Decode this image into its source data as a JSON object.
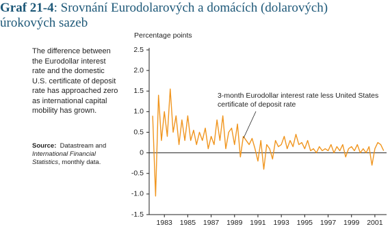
{
  "chart_data": {
    "type": "line",
    "title_number": "Graf 21-4",
    "title": ": Srovnání Eurodolarových a domácích (dolarových) úrokových sazeb",
    "side_note": "The difference between the Eurodollar interest rate and the domestic U.S. certificate of deposit rate has approached zero as international capital mobility has grown.",
    "source": {
      "label": "Source:",
      "text": "Datastream and",
      "italic": "International Financial Statistics",
      "tail": ", monthly data."
    },
    "ylabel": "Percentage points",
    "annotation": "3-month Eurodollar interest rate less United States certificate of deposit rate",
    "xlim": [
      1981.7,
      2002.0
    ],
    "xticks": [
      1983,
      1985,
      1987,
      1989,
      1991,
      1993,
      1995,
      1997,
      1999,
      2001
    ],
    "ylim": [
      -1.5,
      2.5
    ],
    "yticks": [
      {
        "value": 2.5,
        "label": "2.5"
      },
      {
        "value": 2,
        "label": "2.0"
      },
      {
        "value": 1.5,
        "label": "1.5"
      },
      {
        "value": 1,
        "label": "1.0"
      },
      {
        "value": 0.5,
        "label": "0.5"
      },
      0,
      {
        "value": -0.5,
        "label": "-0.5"
      },
      {
        "value": -1,
        "label": "-1.0"
      },
      {
        "value": -1.5,
        "label": "-1.5"
      }
    ],
    "zero_line": true,
    "series": [
      {
        "name": "3-month Eurodollar interest rate less United States certificate of deposit rate",
        "color": "#f0951e",
        "x": [
          1982,
          1982.25,
          1982.5,
          1982.75,
          1983,
          1983.25,
          1983.5,
          1983.75,
          1984,
          1984.25,
          1984.5,
          1984.75,
          1985,
          1985.25,
          1985.5,
          1985.75,
          1986,
          1986.25,
          1986.5,
          1986.75,
          1987,
          1987.25,
          1987.5,
          1987.75,
          1988,
          1988.25,
          1988.5,
          1988.75,
          1989,
          1989.25,
          1989.5,
          1989.75,
          1990,
          1990.25,
          1990.5,
          1990.75,
          1991,
          1991.25,
          1991.5,
          1991.75,
          1992,
          1992.25,
          1992.5,
          1992.75,
          1993,
          1993.25,
          1993.5,
          1993.75,
          1994,
          1994.25,
          1994.5,
          1994.75,
          1995,
          1995.25,
          1995.5,
          1995.75,
          1996,
          1996.25,
          1996.5,
          1996.75,
          1997,
          1997.25,
          1997.5,
          1997.75,
          1998,
          1998.25,
          1998.5,
          1998.75,
          1999,
          1999.25,
          1999.5,
          1999.75,
          2000,
          2000.25,
          2000.5,
          2000.75,
          2001,
          2001.25,
          2001.5,
          2001.75
        ],
        "values": [
          0.9,
          -1.05,
          1.4,
          0.3,
          1.0,
          0.4,
          1.55,
          0.5,
          0.9,
          0.2,
          0.8,
          0.3,
          0.9,
          0.3,
          0.55,
          0.2,
          0.5,
          0.3,
          0.6,
          0.1,
          0.4,
          0.2,
          0.8,
          0.3,
          0.9,
          0.1,
          0.5,
          0.6,
          0.2,
          0.7,
          -0.1,
          0.4,
          0.3,
          0.2,
          0.35,
          0.1,
          -0.2,
          0.3,
          -0.4,
          0.2,
          0.1,
          -0.15,
          0.3,
          0.15,
          0.2,
          0.4,
          0.1,
          0.3,
          0.15,
          0.45,
          0.2,
          0.25,
          0.1,
          0.3,
          0.05,
          0.1,
          0.0,
          0.15,
          0.05,
          0.1,
          0.05,
          0.2,
          0.0,
          0.15,
          0.05,
          0.2,
          -0.1,
          0.1,
          0.15,
          0.05,
          0.2,
          0.0,
          0.1,
          0.0,
          0.15,
          -0.3,
          0.1,
          0.25,
          0.2,
          0.05
        ]
      }
    ]
  }
}
